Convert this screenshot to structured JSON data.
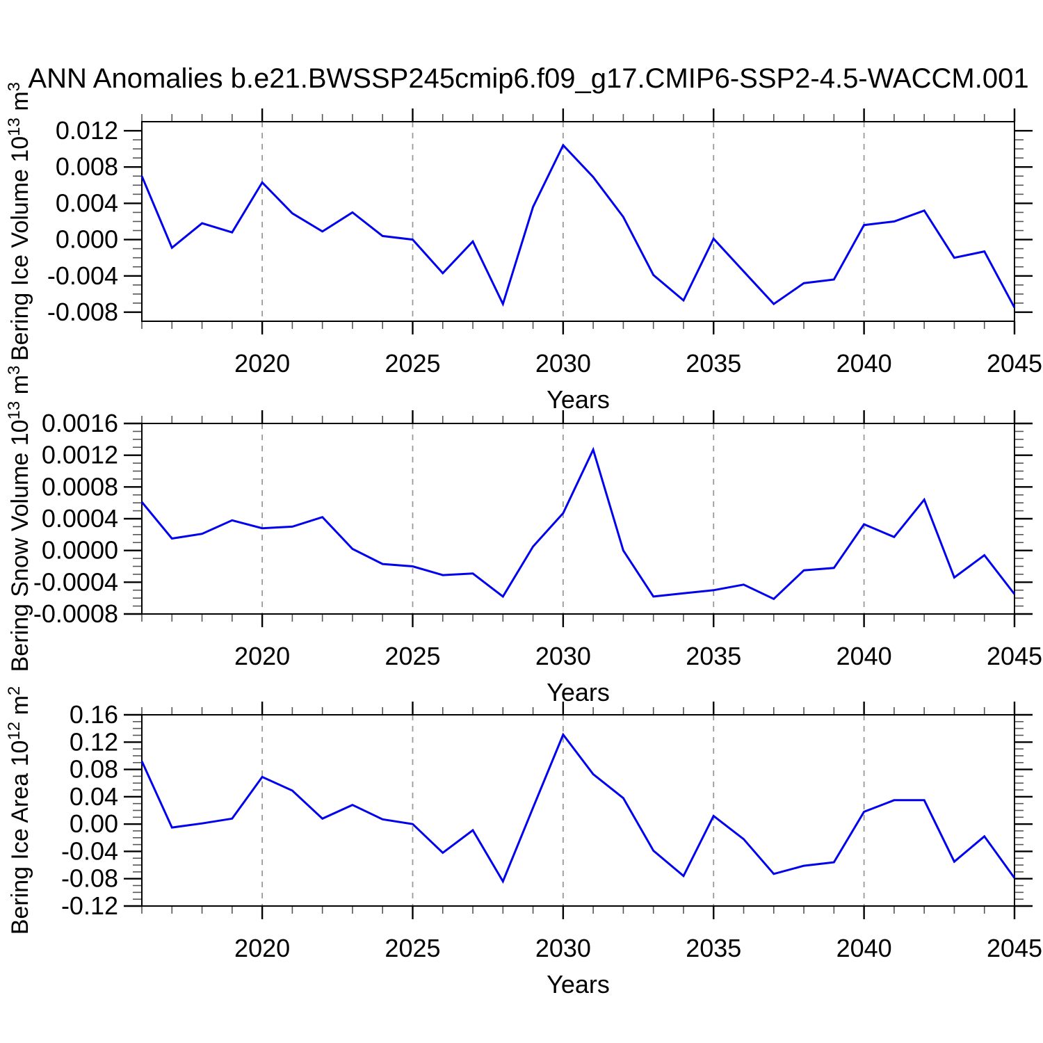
{
  "title": "ANN Anomalies b.e21.BWSSP245cmip6.f09_g17.CMIP6-SSP2-4.5-WACCM.001",
  "style": {
    "line_color": "#0000EE",
    "grid_color": "#999999",
    "axis_color": "#000000",
    "minor_tick_color": "#555555",
    "background": "#FFFFFF"
  },
  "chart_data": [
    {
      "type": "line",
      "series_name": "bering-ice-volume",
      "ylabel": "Bering Ice Volume 10¹³ m³",
      "ylabel_parts": [
        {
          "t": "Bering Ice Volume 10"
        },
        {
          "t": "13",
          "sup": true
        },
        {
          "t": " m"
        },
        {
          "t": "3",
          "sup": true
        }
      ],
      "xlabel": "Years",
      "xlim": [
        2016,
        2045
      ],
      "xticks": [
        2020,
        2025,
        2030,
        2035,
        2040,
        2045
      ],
      "xtick_labels": [
        "2020",
        "2025",
        "2030",
        "2035",
        "2040",
        "2045"
      ],
      "x_minor_step": 1,
      "ylim": [
        -0.009,
        0.013
      ],
      "yticks": [
        -0.008,
        -0.004,
        0.0,
        0.004,
        0.008,
        0.012
      ],
      "ytick_labels": [
        "-0.008",
        "-0.004",
        "0.000",
        "0.004",
        "0.008",
        "0.012"
      ],
      "y_minor_step": 0.001,
      "grid": "vertical-dashed",
      "legend": "none",
      "x": [
        2016,
        2017,
        2018,
        2019,
        2020,
        2021,
        2022,
        2023,
        2024,
        2025,
        2026,
        2027,
        2028,
        2029,
        2030,
        2031,
        2032,
        2033,
        2034,
        2035,
        2036,
        2037,
        2038,
        2039,
        2040,
        2041,
        2042,
        2043,
        2044,
        2045
      ],
      "values": [
        0.007,
        -0.0009,
        0.0018,
        0.0008,
        0.0063,
        0.0029,
        0.0009,
        0.003,
        0.0004,
        0.0,
        -0.0037,
        -0.0002,
        -0.0071,
        0.0036,
        0.0104,
        0.0069,
        0.0025,
        -0.0039,
        -0.0067,
        0.0001,
        -0.0035,
        -0.0071,
        -0.0048,
        -0.0044,
        0.0016,
        0.002,
        0.0032,
        -0.002,
        -0.0013,
        -0.0075
      ]
    },
    {
      "type": "line",
      "series_name": "bering-snow-volume",
      "ylabel": "Bering Snow Volume 10¹³ m³",
      "ylabel_parts": [
        {
          "t": "Bering Snow Volume 10"
        },
        {
          "t": "13",
          "sup": true
        },
        {
          "t": " m"
        },
        {
          "t": "3",
          "sup": true
        }
      ],
      "xlabel": "Years",
      "xlim": [
        2016,
        2045
      ],
      "xticks": [
        2020,
        2025,
        2030,
        2035,
        2040,
        2045
      ],
      "xtick_labels": [
        "2020",
        "2025",
        "2030",
        "2035",
        "2040",
        "2045"
      ],
      "x_minor_step": 1,
      "ylim": [
        -0.0008,
        0.0016
      ],
      "yticks": [
        -0.0008,
        -0.0004,
        0.0,
        0.0004,
        0.0008,
        0.0012,
        0.0016
      ],
      "ytick_labels": [
        "-0.0008",
        "-0.0004",
        "0.0000",
        "0.0004",
        "0.0008",
        "0.0012",
        "0.0016"
      ],
      "y_minor_step": 0.0001,
      "grid": "vertical-dashed",
      "legend": "none",
      "x": [
        2016,
        2017,
        2018,
        2019,
        2020,
        2021,
        2022,
        2023,
        2024,
        2025,
        2026,
        2027,
        2028,
        2029,
        2030,
        2031,
        2032,
        2033,
        2034,
        2035,
        2036,
        2037,
        2038,
        2039,
        2040,
        2041,
        2042,
        2043,
        2044,
        2045
      ],
      "values": [
        0.00061,
        0.00015,
        0.00021,
        0.00038,
        0.00028,
        0.0003,
        0.00042,
        2e-05,
        -0.00017,
        -0.0002,
        -0.00031,
        -0.00029,
        -0.00058,
        5e-05,
        0.00047,
        0.00127,
        0.0,
        -0.00058,
        -0.00054,
        -0.0005,
        -0.00043,
        -0.00061,
        -0.00025,
        -0.00022,
        0.00033,
        0.00017,
        0.00064,
        -0.00034,
        -6e-05,
        -0.00055
      ]
    },
    {
      "type": "line",
      "series_name": "bering-ice-area",
      "ylabel": "Bering Ice Area 10¹² m²",
      "ylabel_parts": [
        {
          "t": "Bering Ice Area 10"
        },
        {
          "t": "12",
          "sup": true
        },
        {
          "t": " m"
        },
        {
          "t": "2",
          "sup": true
        }
      ],
      "xlabel": "Years",
      "xlim": [
        2016,
        2045
      ],
      "xticks": [
        2020,
        2025,
        2030,
        2035,
        2040,
        2045
      ],
      "xtick_labels": [
        "2020",
        "2025",
        "2030",
        "2035",
        "2040",
        "2045"
      ],
      "x_minor_step": 1,
      "ylim": [
        -0.12,
        0.16
      ],
      "yticks": [
        -0.12,
        -0.08,
        -0.04,
        0.0,
        0.04,
        0.08,
        0.12,
        0.16
      ],
      "ytick_labels": [
        "-0.12",
        "-0.08",
        "-0.04",
        "0.00",
        "0.04",
        "0.08",
        "0.12",
        "0.16"
      ],
      "y_minor_step": 0.01,
      "grid": "vertical-dashed",
      "legend": "none",
      "x": [
        2016,
        2017,
        2018,
        2019,
        2020,
        2021,
        2022,
        2023,
        2024,
        2025,
        2026,
        2027,
        2028,
        2029,
        2030,
        2031,
        2032,
        2033,
        2034,
        2035,
        2036,
        2037,
        2038,
        2039,
        2040,
        2041,
        2042,
        2043,
        2044,
        2045
      ],
      "values": [
        0.092,
        -0.005,
        0.001,
        0.008,
        0.069,
        0.049,
        0.008,
        0.028,
        0.007,
        0.0,
        -0.042,
        -0.009,
        -0.084,
        0.024,
        0.131,
        0.073,
        0.038,
        -0.039,
        -0.076,
        0.012,
        -0.022,
        -0.073,
        -0.061,
        -0.056,
        0.018,
        0.035,
        0.035,
        -0.055,
        -0.018,
        -0.079
      ]
    }
  ]
}
